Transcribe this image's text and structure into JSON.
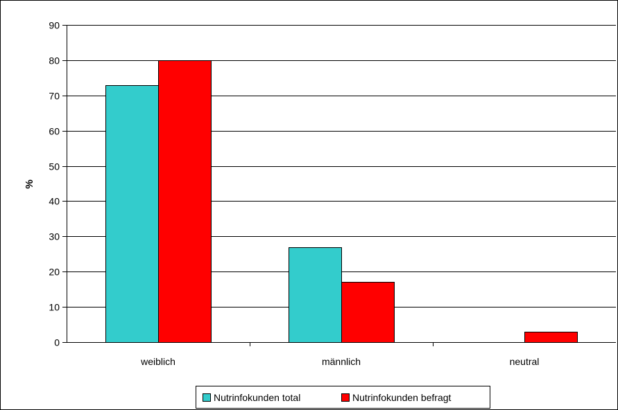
{
  "chart_data": {
    "type": "bar",
    "title": "",
    "xlabel": "",
    "ylabel": "%",
    "ylim": [
      0,
      90
    ],
    "yticks": [
      0,
      10,
      20,
      30,
      40,
      50,
      60,
      70,
      80,
      90
    ],
    "categories": [
      "weiblich",
      "männlich",
      "neutral"
    ],
    "series": [
      {
        "name": "Nutrinfokunden total",
        "values": [
          73,
          27,
          0
        ],
        "color": "#33CCCC"
      },
      {
        "name": "Nutrinfokunden befragt",
        "values": [
          80,
          17,
          3
        ],
        "color": "#FF0000"
      }
    ],
    "grid": true,
    "legend_position": "bottom-center"
  }
}
